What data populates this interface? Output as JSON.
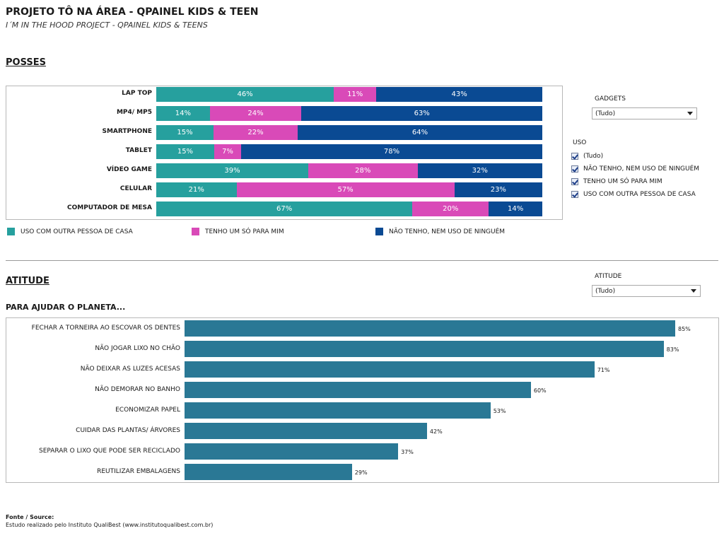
{
  "header": {
    "title": "PROJETO TÔ NA ÁREA - QPAINEL KIDS & TEEN",
    "subtitle": "I´M IN THE HOOD PROJECT  - QPAINEL KIDS & TEENS"
  },
  "posses": {
    "section_title": "POSSES"
  },
  "filters": {
    "gadgets_title": "GADGETS",
    "gadgets_value": "(Tudo)",
    "uso_title": "USO",
    "uso_options": [
      "(Tudo)",
      "NÃO TENHO, NEM USO DE NINGUÉM",
      "TENHO UM SÓ PARA MIM",
      "USO COM OUTRA PESSOA DE CASA"
    ],
    "atitude_title": "ATITUDE",
    "atitude_value": "(Tudo)"
  },
  "atitude": {
    "section_title": "ATITUDE",
    "subtitle": "PARA AJUDAR O PLANETA..."
  },
  "colors": {
    "uso_com_outra": "#26a09e",
    "tenho_um_so": "#d94ab8",
    "nao_tenho": "#0a4a93",
    "atitude_bar": "#2a7895"
  },
  "chart_data": [
    {
      "type": "bar",
      "orientation": "horizontal",
      "stacked": true,
      "percent_stacked": true,
      "categories": [
        "LAP TOP",
        "MP4/ MP5",
        "SMARTPHONE",
        "TABLET",
        "VÍDEO GAME",
        "CELULAR",
        "COMPUTADOR DE MESA"
      ],
      "series": [
        {
          "name": "USO COM OUTRA PESSOA DE CASA",
          "values": [
            46,
            14,
            15,
            15,
            39,
            21,
            67
          ],
          "labels": [
            "46%",
            "14%",
            "15%",
            "15%",
            "39%",
            "21%",
            "67%"
          ]
        },
        {
          "name": "TENHO UM SÓ PARA MIM",
          "values": [
            11,
            24,
            22,
            7,
            28,
            57,
            20
          ],
          "labels": [
            "11%",
            "24%",
            "22%",
            "7%",
            "28%",
            "57%",
            "20%"
          ]
        },
        {
          "name": "NÃO TENHO, NEM USO DE NINGUÉM",
          "values": [
            43,
            63,
            64,
            78,
            32,
            23,
            14
          ],
          "labels": [
            "43%",
            "63%",
            "64%",
            "78%",
            "32%",
            "23%",
            "14%"
          ]
        }
      ],
      "legend_position": "bottom"
    },
    {
      "type": "bar",
      "orientation": "horizontal",
      "categories": [
        "FECHAR A TORNEIRA AO ESCOVAR OS DENTES",
        "NÃO JOGAR LIXO NO CHÃO",
        "NÃO DEIXAR AS LUZES ACESAS",
        "NÃO DEMORAR NO BANHO",
        "ECONOMIZAR PAPEL",
        "CUIDAR DAS PLANTAS/ ÁRVORES",
        "SEPARAR O LIXO QUE PODE SER RECICLADO",
        "REUTILIZAR EMBALAGENS"
      ],
      "values": [
        85,
        83,
        71,
        60,
        53,
        42,
        37,
        29
      ],
      "value_labels": [
        "85%",
        "83%",
        "71%",
        "60%",
        "53%",
        "42%",
        "37%",
        "29%"
      ],
      "xlim": [
        0,
        100
      ]
    }
  ],
  "footer": {
    "source_label": "Fonte / Source:",
    "source_text": "Estudo realizado pelo Instituto QualiBest (www.institutoqualibest.com.br)"
  }
}
